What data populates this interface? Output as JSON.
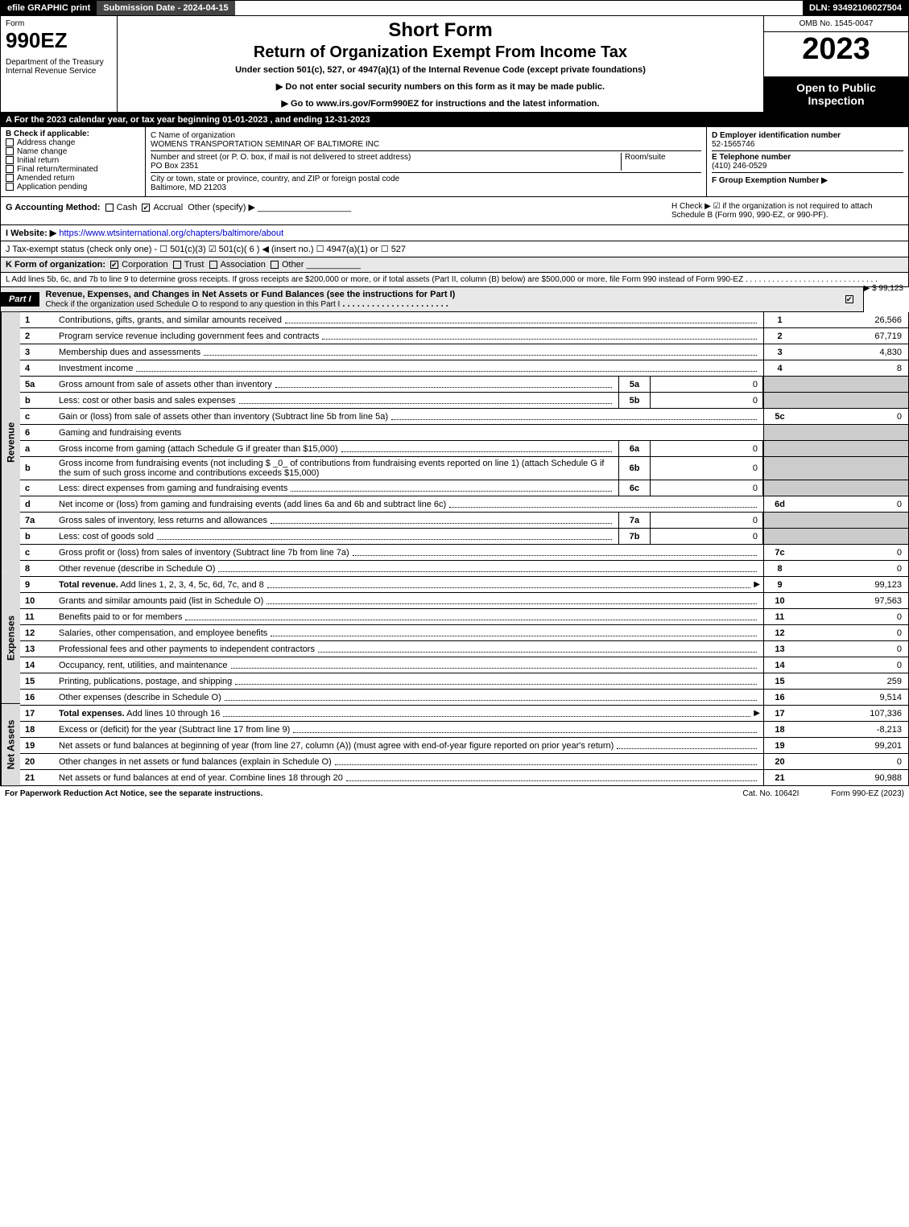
{
  "topbar": {
    "efile": "efile GRAPHIC print",
    "submission": "Submission Date - 2024-04-15",
    "dln": "DLN: 93492106027504"
  },
  "header": {
    "form_label": "Form",
    "form_number": "990EZ",
    "dept": "Department of the Treasury\nInternal Revenue Service",
    "short": "Short Form",
    "return_line": "Return of Organization Exempt From Income Tax",
    "under": "Under section 501(c), 527, or 4947(a)(1) of the Internal Revenue Code (except private foundations)",
    "no_ssn": "▶ Do not enter social security numbers on this form as it may be made public.",
    "goto": "▶ Go to www.irs.gov/Form990EZ for instructions and the latest information.",
    "omb": "OMB No. 1545-0047",
    "year": "2023",
    "open": "Open to Public Inspection"
  },
  "rowA": "A  For the 2023 calendar year, or tax year beginning 01-01-2023  , and ending 12-31-2023",
  "boxB": {
    "title": "B  Check if applicable:",
    "items": [
      "Address change",
      "Name change",
      "Initial return",
      "Final return/terminated",
      "Amended return",
      "Application pending"
    ]
  },
  "boxC": {
    "label_name": "C Name of organization",
    "name": "WOMENS TRANSPORTATION SEMINAR OF BALTIMORE INC",
    "label_street": "Number and street (or P. O. box, if mail is not delivered to street address)",
    "room": "Room/suite",
    "street": "PO Box 2351",
    "label_city": "City or town, state or province, country, and ZIP or foreign postal code",
    "city": "Baltimore, MD  21203"
  },
  "boxD": {
    "label_ein": "D Employer identification number",
    "ein": "52-1565746",
    "label_phone": "E Telephone number",
    "phone": "(410) 246-0529",
    "label_group": "F Group Exemption Number  ▶"
  },
  "rowG": {
    "label": "G Accounting Method:",
    "cash": "Cash",
    "accrual": "Accrual",
    "other": "Other (specify) ▶"
  },
  "rowH": "H  Check ▶ ☑ if the organization is not required to attach Schedule B (Form 990, 990-EZ, or 990-PF).",
  "rowI": {
    "label": "I Website: ▶",
    "url": "https://www.wtsinternational.org/chapters/baltimore/about"
  },
  "rowJ": "J Tax-exempt status (check only one) - ☐ 501(c)(3) ☑ 501(c)( 6 ) ◀ (insert no.) ☐ 4947(a)(1) or ☐ 527",
  "rowK": {
    "label": "K Form of organization:",
    "corp": "Corporation",
    "trust": "Trust",
    "assoc": "Association",
    "other": "Other"
  },
  "rowL": {
    "text": "L Add lines 5b, 6c, and 7b to line 9 to determine gross receipts. If gross receipts are $200,000 or more, or if total assets (Part II, column (B) below) are $500,000 or more, file Form 990 instead of Form 990-EZ",
    "amount": "▶ $ 99,123"
  },
  "part1": {
    "label": "Part I",
    "title": "Revenue, Expenses, and Changes in Net Assets or Fund Balances (see the instructions for Part I)",
    "sub": "Check if the organization used Schedule O to respond to any question in this Part I"
  },
  "sidelabels": {
    "rev": "Revenue",
    "exp": "Expenses",
    "net": "Net Assets"
  },
  "lines": {
    "l1": {
      "n": "1",
      "d": "Contributions, gifts, grants, and similar amounts received",
      "rn": "1",
      "v": "26,566"
    },
    "l2": {
      "n": "2",
      "d": "Program service revenue including government fees and contracts",
      "rn": "2",
      "v": "67,719"
    },
    "l3": {
      "n": "3",
      "d": "Membership dues and assessments",
      "rn": "3",
      "v": "4,830"
    },
    "l4": {
      "n": "4",
      "d": "Investment income",
      "rn": "4",
      "v": "8"
    },
    "l5a": {
      "n": "5a",
      "d": "Gross amount from sale of assets other than inventory",
      "mn": "5a",
      "mv": "0"
    },
    "l5b": {
      "n": "b",
      "d": "Less: cost or other basis and sales expenses",
      "mn": "5b",
      "mv": "0"
    },
    "l5c": {
      "n": "c",
      "d": "Gain or (loss) from sale of assets other than inventory (Subtract line 5b from line 5a)",
      "rn": "5c",
      "v": "0"
    },
    "l6": {
      "n": "6",
      "d": "Gaming and fundraising events"
    },
    "l6a": {
      "n": "a",
      "d": "Gross income from gaming (attach Schedule G if greater than $15,000)",
      "mn": "6a",
      "mv": "0"
    },
    "l6b": {
      "n": "b",
      "d": "Gross income from fundraising events (not including $ _0_ of contributions from fundraising events reported on line 1) (attach Schedule G if the sum of such gross income and contributions exceeds $15,000)",
      "mn": "6b",
      "mv": "0"
    },
    "l6c": {
      "n": "c",
      "d": "Less: direct expenses from gaming and fundraising events",
      "mn": "6c",
      "mv": "0"
    },
    "l6d": {
      "n": "d",
      "d": "Net income or (loss) from gaming and fundraising events (add lines 6a and 6b and subtract line 6c)",
      "rn": "6d",
      "v": "0"
    },
    "l7a": {
      "n": "7a",
      "d": "Gross sales of inventory, less returns and allowances",
      "mn": "7a",
      "mv": "0"
    },
    "l7b": {
      "n": "b",
      "d": "Less: cost of goods sold",
      "mn": "7b",
      "mv": "0"
    },
    "l7c": {
      "n": "c",
      "d": "Gross profit or (loss) from sales of inventory (Subtract line 7b from line 7a)",
      "rn": "7c",
      "v": "0"
    },
    "l8": {
      "n": "8",
      "d": "Other revenue (describe in Schedule O)",
      "rn": "8",
      "v": "0"
    },
    "l9": {
      "n": "9",
      "d": "Total revenue. Add lines 1, 2, 3, 4, 5c, 6d, 7c, and 8",
      "rn": "9",
      "v": "99,123",
      "bold": true,
      "arrow": true
    },
    "l10": {
      "n": "10",
      "d": "Grants and similar amounts paid (list in Schedule O)",
      "rn": "10",
      "v": "97,563"
    },
    "l11": {
      "n": "11",
      "d": "Benefits paid to or for members",
      "rn": "11",
      "v": "0"
    },
    "l12": {
      "n": "12",
      "d": "Salaries, other compensation, and employee benefits",
      "rn": "12",
      "v": "0"
    },
    "l13": {
      "n": "13",
      "d": "Professional fees and other payments to independent contractors",
      "rn": "13",
      "v": "0"
    },
    "l14": {
      "n": "14",
      "d": "Occupancy, rent, utilities, and maintenance",
      "rn": "14",
      "v": "0"
    },
    "l15": {
      "n": "15",
      "d": "Printing, publications, postage, and shipping",
      "rn": "15",
      "v": "259"
    },
    "l16": {
      "n": "16",
      "d": "Other expenses (describe in Schedule O)",
      "rn": "16",
      "v": "9,514"
    },
    "l17": {
      "n": "17",
      "d": "Total expenses. Add lines 10 through 16",
      "rn": "17",
      "v": "107,336",
      "bold": true,
      "arrow": true
    },
    "l18": {
      "n": "18",
      "d": "Excess or (deficit) for the year (Subtract line 17 from line 9)",
      "rn": "18",
      "v": "-8,213"
    },
    "l19": {
      "n": "19",
      "d": "Net assets or fund balances at beginning of year (from line 27, column (A)) (must agree with end-of-year figure reported on prior year's return)",
      "rn": "19",
      "v": "99,201"
    },
    "l20": {
      "n": "20",
      "d": "Other changes in net assets or fund balances (explain in Schedule O)",
      "rn": "20",
      "v": "0"
    },
    "l21": {
      "n": "21",
      "d": "Net assets or fund balances at end of year. Combine lines 18 through 20",
      "rn": "21",
      "v": "90,988"
    }
  },
  "footer": {
    "pra": "For Paperwork Reduction Act Notice, see the separate instructions.",
    "cat": "Cat. No. 10642I",
    "form": "Form 990-EZ (2023)"
  }
}
